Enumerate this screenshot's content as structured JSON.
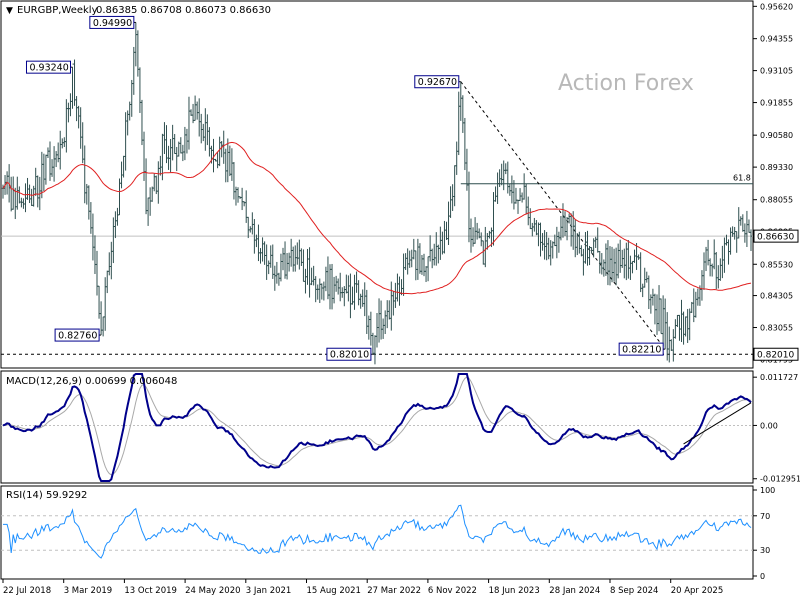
{
  "header": {
    "symbol": "EURGBP,Weekly",
    "ohlc": "0.86385 0.86708 0.86073 0.86630"
  },
  "watermark": "Action Forex",
  "colors": {
    "bar": "#2f4f4f",
    "ma": "#e02020",
    "macd": "#00008b",
    "signal": "#a9a9a9",
    "rsi": "#1e90ff",
    "axis": "#000000",
    "grid_ref": "#c0c0c0"
  },
  "chart_data": [
    {
      "type": "ohlc",
      "title": "EURGBP,Weekly",
      "timeframe": "Weekly",
      "x_ticks": [
        "22 Jul 2018",
        "3 Mar 2019",
        "13 Oct 2019",
        "24 May 2020",
        "3 Jan 2021",
        "15 Aug 2021",
        "27 Mar 2022",
        "6 Nov 2022",
        "18 Jun 2023",
        "28 Jan 2024",
        "8 Sep 2024",
        "20 Apr 2025"
      ],
      "y_ticks": [
        "0.95620",
        "0.94355",
        "0.93105",
        "0.91855",
        "0.90580",
        "0.89330",
        "0.88055",
        "0.86805",
        "0.85530",
        "0.84305",
        "0.83055",
        "0.81795"
      ],
      "ylim": [
        0.8155,
        0.9575
      ],
      "current_price": "0.86630",
      "current_price_value": 0.8663,
      "bottom_line": "0.82010",
      "bottom_line_value": 0.8201,
      "fib_label": "61.8",
      "fib_value": 0.8868,
      "trend_label_value": 0.8221,
      "annotations": [
        {
          "label": "0.94990",
          "value": 0.9499,
          "date_index": 65
        },
        {
          "label": "0.93240",
          "value": 0.9324,
          "date_index": 34
        },
        {
          "label": "0.92670",
          "value": 0.9267,
          "date_index": 224
        },
        {
          "label": "0.82760",
          "value": 0.8276,
          "date_index": 48
        },
        {
          "label": "0.82010",
          "value": 0.8201,
          "date_index": 181
        },
        {
          "label": "0.82210",
          "value": 0.8221,
          "date_index": 324
        }
      ],
      "anchors": [
        [
          0,
          0.887
        ],
        [
          10,
          0.876
        ],
        [
          20,
          0.892
        ],
        [
          30,
          0.905
        ],
        [
          34,
          0.928
        ],
        [
          40,
          0.887
        ],
        [
          48,
          0.83
        ],
        [
          55,
          0.87
        ],
        [
          65,
          0.945
        ],
        [
          70,
          0.872
        ],
        [
          78,
          0.9
        ],
        [
          88,
          0.905
        ],
        [
          95,
          0.915
        ],
        [
          102,
          0.902
        ],
        [
          110,
          0.895
        ],
        [
          118,
          0.875
        ],
        [
          130,
          0.855
        ],
        [
          145,
          0.855
        ],
        [
          160,
          0.848
        ],
        [
          170,
          0.845
        ],
        [
          178,
          0.836
        ],
        [
          181,
          0.825
        ],
        [
          190,
          0.84
        ],
        [
          200,
          0.86
        ],
        [
          210,
          0.855
        ],
        [
          218,
          0.87
        ],
        [
          224,
          0.92
        ],
        [
          228,
          0.87
        ],
        [
          236,
          0.86
        ],
        [
          244,
          0.89
        ],
        [
          250,
          0.885
        ],
        [
          256,
          0.88
        ],
        [
          262,
          0.865
        ],
        [
          268,
          0.858
        ],
        [
          276,
          0.875
        ],
        [
          282,
          0.862
        ],
        [
          290,
          0.86
        ],
        [
          300,
          0.855
        ],
        [
          308,
          0.86
        ],
        [
          314,
          0.845
        ],
        [
          320,
          0.838
        ],
        [
          326,
          0.826
        ],
        [
          333,
          0.832
        ],
        [
          340,
          0.84
        ],
        [
          345,
          0.862
        ],
        [
          350,
          0.85
        ],
        [
          356,
          0.866
        ],
        [
          362,
          0.87
        ],
        [
          366,
          0.8663
        ]
      ],
      "ma_period": 55,
      "bar_count": 367
    },
    {
      "type": "line",
      "title": "MACD(12,26,9) 0.00699 0.006048",
      "series": [
        {
          "name": "MACD"
        },
        {
          "name": "Signal"
        }
      ],
      "y_ticks": [
        "0.011727",
        "0.00",
        "-0.012951"
      ],
      "ylim": [
        -0.0135,
        0.0125
      ]
    },
    {
      "type": "line",
      "title": "RSI(14) 59.9292",
      "series": [
        {
          "name": "RSI(14)"
        }
      ],
      "y_ticks": [
        "100",
        "70",
        "30",
        "0"
      ],
      "ylim": [
        0,
        100
      ],
      "levels": [
        70,
        30
      ]
    }
  ]
}
